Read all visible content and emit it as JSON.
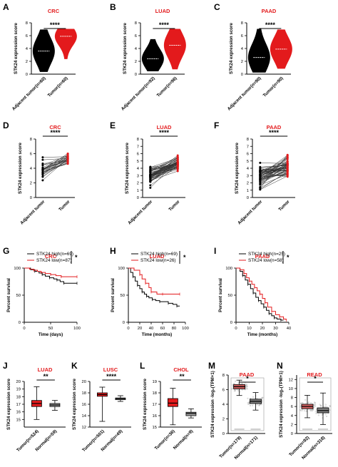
{
  "colors": {
    "tumor": "#e31a1c",
    "adjacent": "#000000",
    "pink": "#d06060",
    "gray_box": "#9e9e9e"
  },
  "panels": {
    "A": {
      "letter": "A",
      "title": "CRC",
      "ylabel": "STK24 expression score",
      "sig": "****"
    },
    "B": {
      "letter": "B",
      "title": "LUAD",
      "ylabel": "STK24 expression score",
      "sig": "****"
    },
    "C": {
      "letter": "C",
      "title": "PAAD",
      "ylabel": "STK24 expression score",
      "sig": "****"
    },
    "D": {
      "letter": "D",
      "title": "CRC",
      "ylabel": "STK24 expression score",
      "sig": "****"
    },
    "E": {
      "letter": "E",
      "title": "LUAD",
      "ylabel": "STK24 expression score",
      "sig": "****"
    },
    "F": {
      "letter": "F",
      "title": "PAAD",
      "ylabel": "STK24 expression score",
      "sig": "****"
    },
    "G": {
      "letter": "G",
      "title": "CRC",
      "ylabel": "Percent survival",
      "xlabel": "Time (days)",
      "sig": "*"
    },
    "H": {
      "letter": "H",
      "title": "LUAD",
      "ylabel": "Percent survival",
      "xlabel": "Time (months)",
      "sig": "*"
    },
    "I": {
      "letter": "I",
      "title": "PAAD",
      "ylabel": "Percent survival",
      "xlabel": "Time (months)",
      "sig": "*"
    },
    "J": {
      "letter": "J",
      "title": "LUAD",
      "ylabel": "STK24 expression score",
      "sig": "**"
    },
    "K": {
      "letter": "K",
      "title": "LUSC",
      "ylabel": "STK24 expression score",
      "sig": "****"
    },
    "L": {
      "letter": "L",
      "title": "CHOL",
      "ylabel": "STK24 expression score",
      "sig": "**"
    },
    "M": {
      "letter": "M",
      "title": "PAAD",
      "ylabel": "STK24 expression -log₂(TPM+1)",
      "sig": "*"
    },
    "N": {
      "letter": "N",
      "title": "READ",
      "ylabel": "STK24 expression -log₂(TPM+1)",
      "sig": "*"
    }
  },
  "chart_data": [
    {
      "id": "A",
      "type": "violin",
      "title": "CRC",
      "ylabel": "STK24 expression score",
      "ylim": [
        0,
        8
      ],
      "yticks": [
        0,
        2,
        4,
        6,
        8
      ],
      "categories": [
        "Adjacent tumor(n=60)",
        "Tumor(n=60)"
      ],
      "medians": [
        3.6,
        5.9
      ],
      "ranges": [
        [
          0.4,
          6.9
        ],
        [
          2.4,
          7.0
        ]
      ],
      "sig": "****"
    },
    {
      "id": "B",
      "type": "violin",
      "title": "LUAD",
      "ylabel": "STK24 expression score",
      "ylim": [
        0,
        8
      ],
      "yticks": [
        0,
        2,
        4,
        6,
        8
      ],
      "categories": [
        "Adjacent tumor(n=92)",
        "Tumor(n=96)"
      ],
      "medians": [
        2.4,
        4.5
      ],
      "ranges": [
        [
          0.5,
          5.4
        ],
        [
          0.8,
          7.0
        ]
      ],
      "sig": "****"
    },
    {
      "id": "C",
      "type": "violin",
      "title": "PAAD",
      "ylabel": "STK24 expression score",
      "ylim": [
        0,
        8
      ],
      "yticks": [
        0,
        2,
        4,
        6,
        8
      ],
      "categories": [
        "Adjacent tumor(n=90)",
        "Tumor(n=90)"
      ],
      "medians": [
        2.6,
        3.9
      ],
      "ranges": [
        [
          0.3,
          7.0
        ],
        [
          0.9,
          6.9
        ]
      ],
      "sig": "****"
    },
    {
      "id": "D",
      "type": "paired",
      "title": "CRC",
      "ylabel": "STK24 expression score",
      "ylim": [
        0,
        8
      ],
      "yticks": [
        0,
        2,
        4,
        6,
        8
      ],
      "categories": [
        "Adjacent tumor",
        "Tumor"
      ],
      "sig": "****"
    },
    {
      "id": "E",
      "type": "paired",
      "title": "LUAD",
      "ylabel": "STK24 expression score",
      "ylim": [
        0,
        8
      ],
      "yticks": [
        0,
        1,
        2,
        3,
        4,
        5,
        6,
        7,
        8
      ],
      "categories": [
        "Adjacent tumor",
        "Tumor"
      ],
      "sig": "****"
    },
    {
      "id": "F",
      "type": "paired",
      "title": "PAAD",
      "ylabel": "STK24 expression score",
      "ylim": [
        0,
        8
      ],
      "yticks": [
        0,
        1,
        2,
        3,
        4,
        5,
        6,
        7,
        8
      ],
      "categories": [
        "Adjacent tumor",
        "Tumor"
      ],
      "sig": "****"
    },
    {
      "id": "G",
      "type": "line",
      "title": "CRC",
      "ylabel": "Percent survival",
      "xlabel": "Time (days)",
      "xlim": [
        0,
        100
      ],
      "ylim": [
        0,
        100
      ],
      "xticks": [
        0,
        50,
        100
      ],
      "yticks": [
        0,
        50,
        100
      ],
      "series": [
        {
          "name": "STK24 high(n=69)",
          "x": [
            0,
            12,
            20,
            28,
            34,
            40,
            48,
            56,
            62,
            68,
            75,
            82,
            100
          ],
          "y": [
            100,
            97,
            94,
            91,
            88,
            85,
            82,
            80,
            78,
            75,
            72,
            72,
            72
          ]
        },
        {
          "name": "STK24 low(n=87)",
          "x": [
            0,
            10,
            18,
            25,
            32,
            40,
            50,
            60,
            70,
            78,
            100
          ],
          "y": [
            100,
            98,
            96,
            94,
            92,
            90,
            88,
            86,
            84,
            84,
            84
          ]
        }
      ],
      "sig": "*"
    },
    {
      "id": "H",
      "type": "line",
      "title": "LUAD",
      "ylabel": "Percent survival",
      "xlabel": "Time (months)",
      "xlim": [
        0,
        100
      ],
      "ylim": [
        0,
        100
      ],
      "xticks": [
        0,
        20,
        40,
        60,
        80,
        100
      ],
      "yticks": [
        0,
        50,
        100
      ],
      "series": [
        {
          "name": "STK24 high(n=69)",
          "x": [
            0,
            4,
            8,
            12,
            16,
            20,
            24,
            28,
            32,
            36,
            42,
            48,
            55,
            62,
            70,
            78,
            85,
            90
          ],
          "y": [
            100,
            92,
            84,
            76,
            68,
            62,
            56,
            52,
            48,
            45,
            42,
            40,
            38,
            38,
            35,
            33,
            30,
            30
          ]
        },
        {
          "name": "STK24 low(n=26)",
          "x": [
            0,
            10,
            20,
            24,
            30,
            36,
            40,
            50,
            60,
            70,
            90
          ],
          "y": [
            100,
            96,
            88,
            80,
            72,
            64,
            56,
            52,
            52,
            52,
            52
          ]
        }
      ],
      "sig": "*"
    },
    {
      "id": "I",
      "type": "line",
      "title": "PAAD",
      "ylabel": "Percent survival",
      "xlabel": "Time (months)",
      "xlim": [
        0,
        40
      ],
      "ylim": [
        0,
        100
      ],
      "xticks": [
        0,
        10,
        20,
        30,
        40
      ],
      "yticks": [
        0,
        50,
        100
      ],
      "series": [
        {
          "name": "STK24 high(n=25)",
          "x": [
            0,
            3,
            5,
            7,
            9,
            11,
            13,
            15,
            17,
            19,
            21,
            23,
            25,
            27,
            29,
            31,
            34,
            36
          ],
          "y": [
            100,
            94,
            86,
            78,
            70,
            62,
            54,
            46,
            40,
            34,
            28,
            22,
            16,
            12,
            8,
            6,
            4,
            4
          ]
        },
        {
          "name": "STK24 low(n=58)",
          "x": [
            0,
            3,
            6,
            8,
            10,
            12,
            14,
            16,
            18,
            20,
            22,
            24,
            27,
            30,
            33,
            36,
            38
          ],
          "y": [
            100,
            97,
            90,
            82,
            76,
            70,
            64,
            58,
            52,
            44,
            36,
            28,
            20,
            14,
            10,
            6,
            4
          ]
        }
      ],
      "sig": "*"
    },
    {
      "id": "J",
      "type": "box",
      "title": "LUAD",
      "ylabel": "STK24 expression score",
      "ylim": [
        14,
        20
      ],
      "yticks": [
        15,
        16,
        17,
        18,
        19,
        20
      ],
      "categories": [
        "Tumor(n=524)",
        "Normal(n=59)"
      ],
      "boxes": [
        {
          "min": 15.0,
          "q1": 16.7,
          "median": 17.1,
          "q3": 17.5,
          "max": 19.3
        },
        {
          "min": 16.2,
          "q1": 16.7,
          "median": 16.9,
          "q3": 17.1,
          "max": 17.5
        }
      ],
      "sig": "**"
    },
    {
      "id": "K",
      "type": "box",
      "title": "LUSC",
      "ylabel": "STK24 expression score",
      "ylim": [
        12,
        20
      ],
      "yticks": [
        12,
        14,
        16,
        18,
        20
      ],
      "categories": [
        "Tumor(n=501)",
        "Normal(n=49)"
      ],
      "boxes": [
        {
          "min": 13.0,
          "q1": 17.4,
          "median": 17.7,
          "q3": 18.0,
          "max": 19.0
        },
        {
          "min": 16.5,
          "q1": 16.8,
          "median": 17.0,
          "q3": 17.1,
          "max": 17.5
        }
      ],
      "sig": "****"
    },
    {
      "id": "L",
      "type": "box",
      "title": "CHOL",
      "ylabel": "STK24 expression score",
      "ylim": [
        15,
        19
      ],
      "yticks": [
        15,
        16,
        17,
        18,
        19
      ],
      "categories": [
        "Tumor(n=36)",
        "Normal(n=9)"
      ],
      "boxes": [
        {
          "min": 15.2,
          "q1": 16.8,
          "median": 17.1,
          "q3": 17.5,
          "max": 18.4
        },
        {
          "min": 15.8,
          "q1": 16.0,
          "median": 16.2,
          "q3": 16.3,
          "max": 16.6
        }
      ],
      "sig": "**"
    },
    {
      "id": "M",
      "type": "box",
      "title": "PAAD",
      "ylabel": "STK24 expression -log₂(TPM+1)",
      "ylim": [
        0,
        8
      ],
      "yticks": [
        0,
        2,
        4,
        6,
        8
      ],
      "categories": [
        "Tumor(n=179)",
        "Normal(n=171)"
      ],
      "boxes": [
        {
          "min": 5.2,
          "q1": 6.1,
          "median": 6.4,
          "q3": 6.7,
          "max": 7.3
        },
        {
          "min": 3.2,
          "q1": 4.1,
          "median": 4.4,
          "q3": 4.7,
          "max": 5.6
        }
      ],
      "sig": "*"
    },
    {
      "id": "N",
      "type": "box",
      "title": "READ",
      "ylabel": "STK24 expression -log₂(TPM+1)",
      "ylim": [
        0,
        13
      ],
      "yticks": [
        0,
        2,
        4,
        6,
        8,
        10,
        12
      ],
      "categories": [
        "Tumor(n=92)",
        "Normal(n=318)"
      ],
      "boxes": [
        {
          "min": 3.5,
          "q1": 5.5,
          "median": 6.0,
          "q3": 6.5,
          "max": 8.5
        },
        {
          "min": 2.0,
          "q1": 4.6,
          "median": 5.1,
          "q3": 5.7,
          "max": 9.0
        }
      ],
      "sig": "*"
    }
  ]
}
